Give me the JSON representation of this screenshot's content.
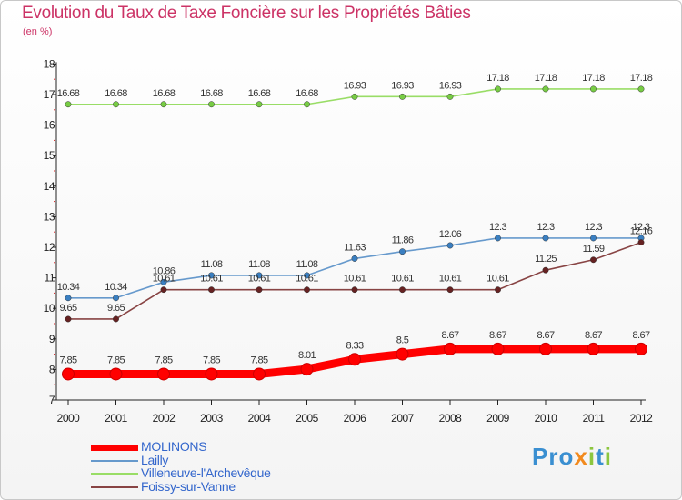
{
  "title": "Evolution du Taux de Taxe Foncière sur les Propriétés Bâties",
  "unit": "(en %)",
  "logo": [
    {
      "ch": "P",
      "color": "#3a8fd1"
    },
    {
      "ch": "r",
      "color": "#3a8fd1"
    },
    {
      "ch": "o",
      "color": "#3a8fd1"
    },
    {
      "ch": "x",
      "color": "#f28a1e"
    },
    {
      "ch": "i",
      "color": "#8cc63f"
    },
    {
      "ch": "t",
      "color": "#3a8fd1"
    },
    {
      "ch": "i",
      "color": "#8cc63f"
    }
  ],
  "chart_data": {
    "type": "line",
    "title": "Evolution du Taux de Taxe Foncière sur les Propriétés Bâties",
    "ylabel": "(en %)",
    "xlabel": "",
    "categories": [
      "2000",
      "2001",
      "2002",
      "2003",
      "2004",
      "2005",
      "2006",
      "2007",
      "2008",
      "2009",
      "2010",
      "2011",
      "2012"
    ],
    "ylim": [
      7,
      18
    ],
    "yticks": [
      "7",
      "8",
      "9",
      "10",
      "11",
      "12",
      "13",
      "14",
      "15",
      "16",
      "17",
      "18"
    ],
    "grid": false,
    "legend_position": "bottom-left",
    "series": [
      {
        "name": "MOLINONS",
        "color": "#ff0000",
        "emphasis": true,
        "values": [
          7.85,
          7.85,
          7.85,
          7.85,
          7.85,
          8.01,
          8.33,
          8.5,
          8.67,
          8.67,
          8.67,
          8.67,
          8.67
        ],
        "labels": [
          "7.85",
          "7.85",
          "7.85",
          "7.85",
          "7.85",
          "8.01",
          "8.33",
          "8.5",
          "8.67",
          "8.67",
          "8.67",
          "8.67",
          "8.67"
        ]
      },
      {
        "name": "Lailly",
        "color": "#6699cc",
        "marker": "#3a7fc1",
        "values": [
          10.34,
          10.34,
          10.86,
          11.08,
          11.08,
          11.08,
          11.63,
          11.86,
          12.06,
          12.3,
          12.3,
          12.3,
          12.3
        ],
        "labels": [
          "10.34",
          "10.34",
          "10.86",
          "11.08",
          "11.08",
          "11.08",
          "11.63",
          "11.86",
          "12.06",
          "12.3",
          "12.3",
          "12.3",
          "12.3"
        ]
      },
      {
        "name": "Villeneuve-l'Archevêque",
        "color": "#99dd66",
        "marker": "#77cc44",
        "values": [
          16.68,
          16.68,
          16.68,
          16.68,
          16.68,
          16.68,
          16.93,
          16.93,
          16.93,
          17.18,
          17.18,
          17.18,
          17.18
        ],
        "labels": [
          "16.68",
          "16.68",
          "16.68",
          "16.68",
          "16.68",
          "16.68",
          "16.93",
          "16.93",
          "16.93",
          "17.18",
          "17.18",
          "17.18",
          "17.18"
        ]
      },
      {
        "name": "Foissy-sur-Vanne",
        "color": "#884444",
        "marker": "#662222",
        "values": [
          9.65,
          9.65,
          10.61,
          10.61,
          10.61,
          10.61,
          10.61,
          10.61,
          10.61,
          10.61,
          11.25,
          11.59,
          12.16
        ],
        "labels": [
          "9.65",
          "9.65",
          "10.61",
          "10.61",
          "10.61",
          "10.61",
          "10.61",
          "10.61",
          "10.61",
          "10.61",
          "11.25",
          "11.59",
          "12.16"
        ]
      }
    ]
  }
}
